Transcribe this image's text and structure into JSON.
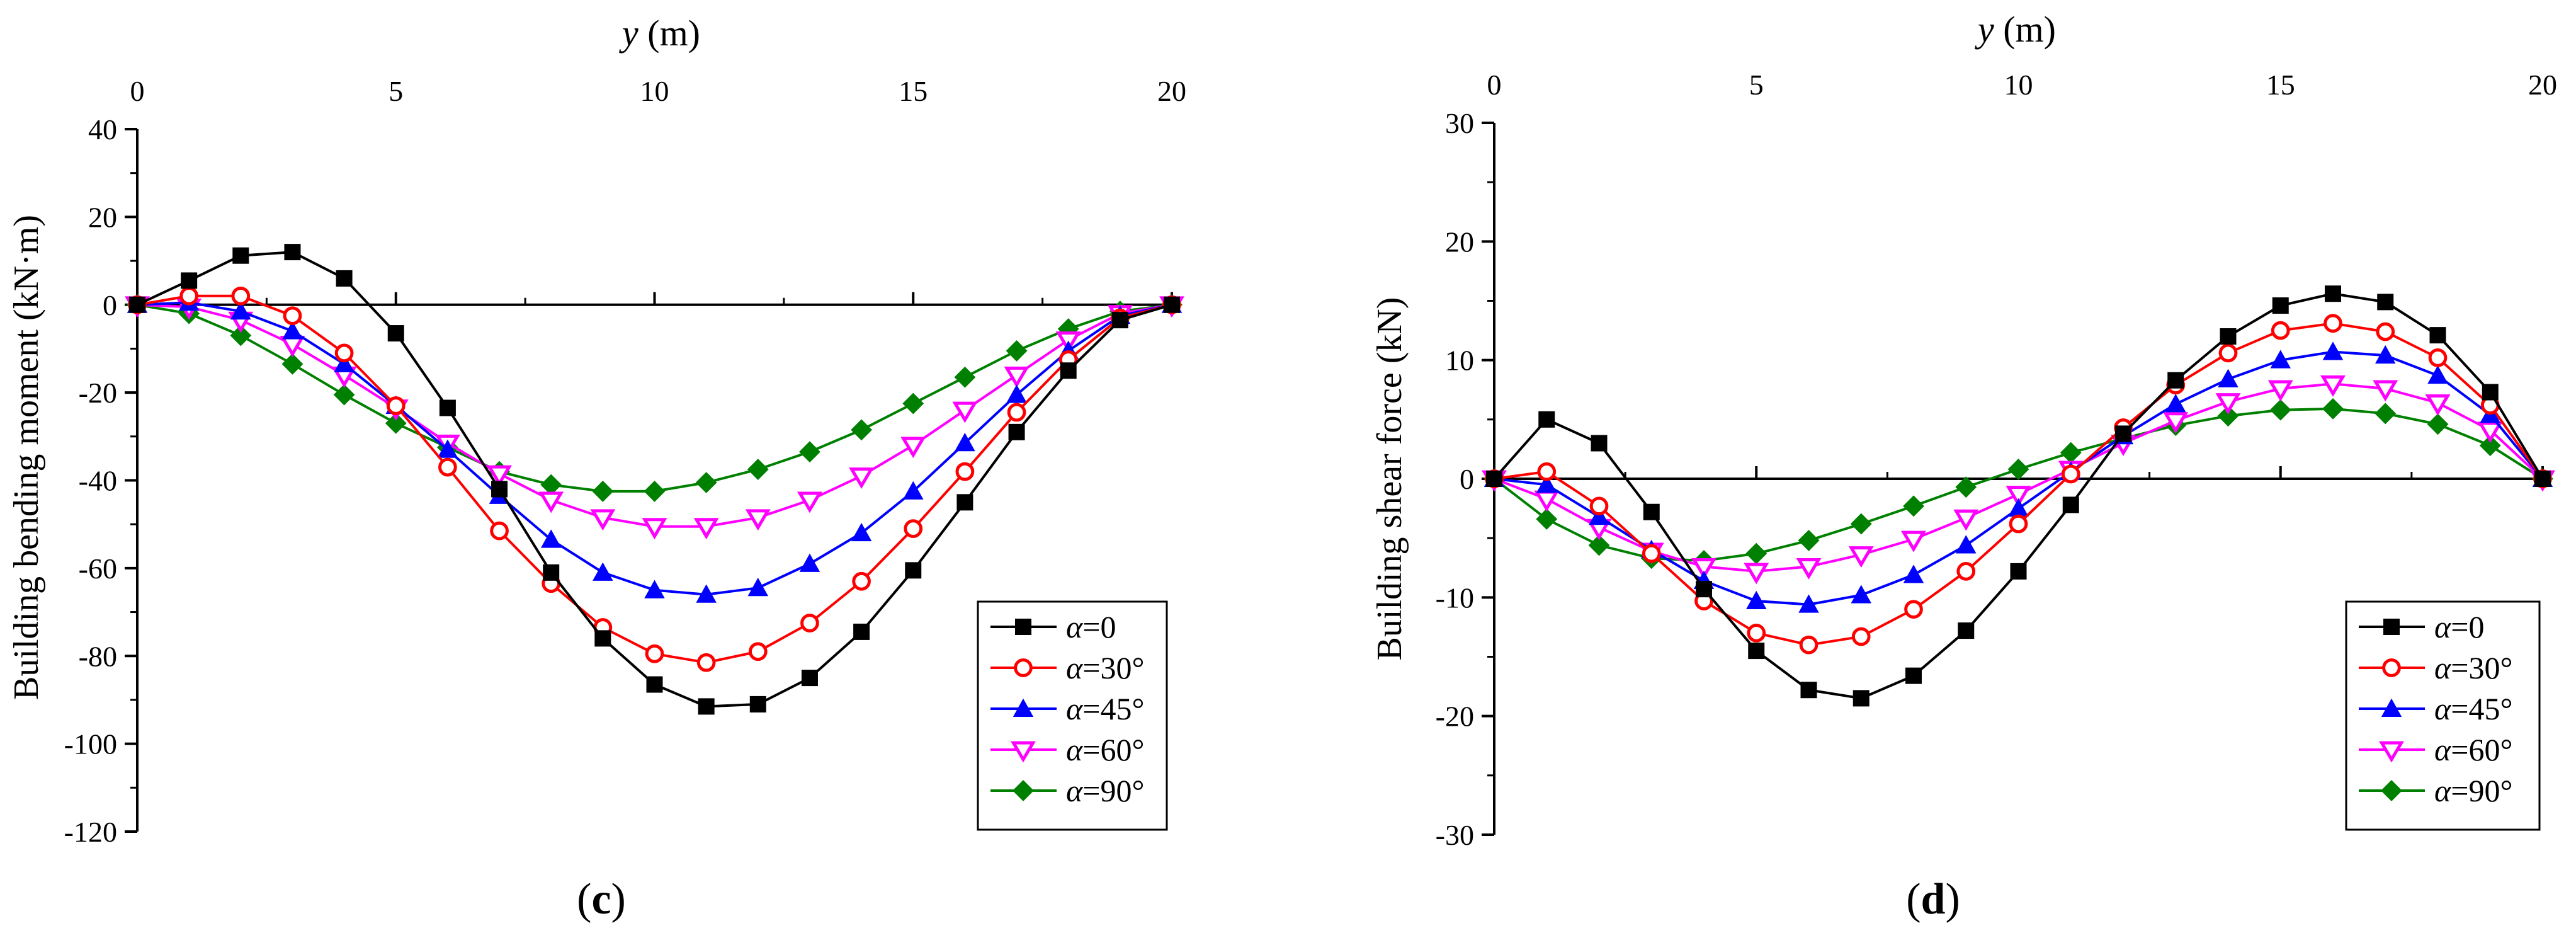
{
  "chart_data": [
    {
      "type": "line",
      "panel_label": "c",
      "xlabel_italic": "y",
      "xlabel_unit": " (m)",
      "ylabel": "Building bending moment (kN·m)",
      "xlim": [
        0,
        20
      ],
      "ylim": [
        -120,
        40
      ],
      "xticks": [
        0,
        5,
        10,
        15,
        20
      ],
      "yticks": [
        40,
        20,
        0,
        -20,
        -40,
        -60,
        -80,
        -100,
        -120
      ],
      "legend_position": "bottom-right",
      "x": [
        0,
        1,
        2,
        3,
        4,
        5,
        6,
        7,
        8,
        9,
        10,
        11,
        12,
        13,
        14,
        15,
        16,
        17,
        18,
        19,
        20
      ],
      "series": [
        {
          "name": "α=0",
          "color": "#000000",
          "marker": "square",
          "values": [
            0,
            5.5,
            11.2,
            12,
            6,
            -6.5,
            -23.5,
            -42,
            -61,
            -76,
            -86.5,
            -91.5,
            -91,
            -85,
            -74.5,
            -60.5,
            -45,
            -29,
            -15,
            -3.5,
            0
          ]
        },
        {
          "name": "α=30°",
          "color": "#ff0000",
          "marker": "circle-open",
          "values": [
            0,
            2,
            2,
            -2.5,
            -11,
            -23,
            -37,
            -51.5,
            -63.5,
            -73.5,
            -79.5,
            -81.5,
            -79,
            -72.5,
            -63,
            -51,
            -38,
            -24.5,
            -12.5,
            -3,
            0
          ]
        },
        {
          "name": "α=45°",
          "color": "#0000ff",
          "marker": "triangle-up",
          "values": [
            0,
            0.5,
            -1.5,
            -6,
            -13.5,
            -23,
            -33,
            -43.5,
            -53.5,
            -61,
            -65,
            -66,
            -64.5,
            -59,
            -52,
            -42.5,
            -31.5,
            -20.5,
            -10.5,
            -2.5,
            0
          ]
        },
        {
          "name": "α=60°",
          "color": "#ff00ff",
          "marker": "triangle-down-open",
          "values": [
            0,
            -0.5,
            -3.5,
            -9,
            -16,
            -23.5,
            -31.5,
            -38.5,
            -44.5,
            -48.5,
            -50.5,
            -50.5,
            -48.5,
            -44.5,
            -39,
            -32,
            -24,
            -16,
            -8,
            -2,
            0
          ]
        },
        {
          "name": "α=90°",
          "color": "#008000",
          "marker": "diamond",
          "values": [
            0,
            -2,
            -7,
            -13.5,
            -20.5,
            -27,
            -32.5,
            -38,
            -41,
            -42.5,
            -42.5,
            -40.5,
            -37.5,
            -33.5,
            -28.5,
            -22.5,
            -16.5,
            -10.5,
            -5.5,
            -1.5,
            0
          ]
        }
      ]
    },
    {
      "type": "line",
      "panel_label": "d",
      "xlabel_italic": "y",
      "xlabel_unit": " (m)",
      "ylabel": "Building shear force (kN)",
      "xlim": [
        0,
        20
      ],
      "ylim": [
        -30,
        30
      ],
      "xticks": [
        0,
        5,
        10,
        15,
        20
      ],
      "yticks": [
        30,
        20,
        10,
        0,
        -10,
        -20,
        -30
      ],
      "legend_position": "bottom-right",
      "x": [
        0,
        1,
        2,
        3,
        4,
        5,
        6,
        7,
        8,
        9,
        10,
        11,
        12,
        13,
        14,
        15,
        16,
        17,
        18,
        19,
        20
      ],
      "series": [
        {
          "name": "α=0",
          "color": "#000000",
          "marker": "square",
          "values": [
            0,
            5,
            3,
            -2.8,
            -9.3,
            -14.5,
            -17.8,
            -18.5,
            -16.6,
            -12.8,
            -7.8,
            -2.2,
            3.8,
            8.3,
            12,
            14.6,
            15.6,
            14.9,
            12.1,
            7.3,
            0
          ]
        },
        {
          "name": "α=30°",
          "color": "#ff0000",
          "marker": "circle-open",
          "values": [
            0,
            0.6,
            -2.3,
            -6.3,
            -10.3,
            -13,
            -14,
            -13.3,
            -11,
            -7.8,
            -3.8,
            0.4,
            4.3,
            7.9,
            10.6,
            12.5,
            13.1,
            12.4,
            10.2,
            6.2,
            0
          ]
        },
        {
          "name": "α=45°",
          "color": "#0000ff",
          "marker": "triangle-up",
          "values": [
            0,
            -0.5,
            -3.2,
            -6,
            -8.6,
            -10.3,
            -10.6,
            -9.8,
            -8.1,
            -5.6,
            -2.5,
            0.6,
            3.6,
            6.3,
            8.4,
            10,
            10.7,
            10.4,
            8.7,
            5.4,
            0
          ]
        },
        {
          "name": "α=60°",
          "color": "#ff00ff",
          "marker": "triangle-down-open",
          "values": [
            0,
            -1.7,
            -4.1,
            -6.1,
            -7.4,
            -7.8,
            -7.4,
            -6.4,
            -5.1,
            -3.3,
            -1.3,
            0.8,
            3,
            4.9,
            6.5,
            7.6,
            8,
            7.6,
            6.4,
            4.1,
            0
          ]
        },
        {
          "name": "α=90°",
          "color": "#008000",
          "marker": "diamond",
          "values": [
            0,
            -3.4,
            -5.6,
            -6.7,
            -6.9,
            -6.3,
            -5.2,
            -3.8,
            -2.3,
            -0.7,
            0.8,
            2.2,
            3.4,
            4.5,
            5.3,
            5.8,
            5.9,
            5.5,
            4.6,
            2.8,
            0
          ]
        }
      ]
    }
  ]
}
